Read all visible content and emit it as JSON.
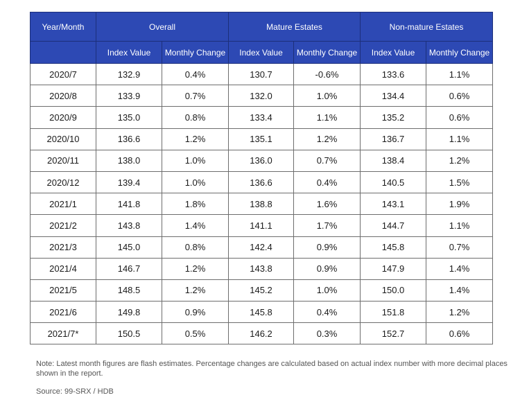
{
  "chart_data": {
    "type": "table",
    "header_groups": [
      "Year/Month",
      "Overall",
      "Mature Estates",
      "Non-mature Estates"
    ],
    "subheaders": [
      "Index Value",
      "Monthly Change",
      "Index Value",
      "Monthly Change",
      "Index Value",
      "Monthly Change"
    ],
    "rows": [
      {
        "month": "2020/7",
        "cells": [
          "132.9",
          "0.4%",
          "130.7",
          "-0.6%",
          "133.6",
          "1.1%"
        ]
      },
      {
        "month": "2020/8",
        "cells": [
          "133.9",
          "0.7%",
          "132.0",
          "1.0%",
          "134.4",
          "0.6%"
        ]
      },
      {
        "month": "2020/9",
        "cells": [
          "135.0",
          "0.8%",
          "133.4",
          "1.1%",
          "135.2",
          "0.6%"
        ]
      },
      {
        "month": "2020/10",
        "cells": [
          "136.6",
          "1.2%",
          "135.1",
          "1.2%",
          "136.7",
          "1.1%"
        ]
      },
      {
        "month": "2020/11",
        "cells": [
          "138.0",
          "1.0%",
          "136.0",
          "0.7%",
          "138.4",
          "1.2%"
        ]
      },
      {
        "month": "2020/12",
        "cells": [
          "139.4",
          "1.0%",
          "136.6",
          "0.4%",
          "140.5",
          "1.5%"
        ]
      },
      {
        "month": "2021/1",
        "cells": [
          "141.8",
          "1.8%",
          "138.8",
          "1.6%",
          "143.1",
          "1.9%"
        ]
      },
      {
        "month": "2021/2",
        "cells": [
          "143.8",
          "1.4%",
          "141.1",
          "1.7%",
          "144.7",
          "1.1%"
        ]
      },
      {
        "month": "2021/3",
        "cells": [
          "145.0",
          "0.8%",
          "142.4",
          "0.9%",
          "145.8",
          "0.7%"
        ]
      },
      {
        "month": "2021/4",
        "cells": [
          "146.7",
          "1.2%",
          "143.8",
          "0.9%",
          "147.9",
          "1.4%"
        ]
      },
      {
        "month": "2021/5",
        "cells": [
          "148.5",
          "1.2%",
          "145.2",
          "1.0%",
          "150.0",
          "1.4%"
        ]
      },
      {
        "month": "2021/6",
        "cells": [
          "149.8",
          "0.9%",
          "145.8",
          "0.4%",
          "151.8",
          "1.2%"
        ]
      },
      {
        "month": "2021/7*",
        "cells": [
          "150.5",
          "0.5%",
          "146.2",
          "0.3%",
          "152.7",
          "0.6%"
        ]
      }
    ],
    "note": "Note: Latest month figures are flash estimates. Percentage changes are calculated based on actual index number with more decimal places shown in the report.",
    "source": "Source: 99-SRX / HDB"
  },
  "colors": {
    "header_bg": "#2d49b4",
    "header_text": "#ffffff",
    "grid": "#6d6d6d"
  }
}
